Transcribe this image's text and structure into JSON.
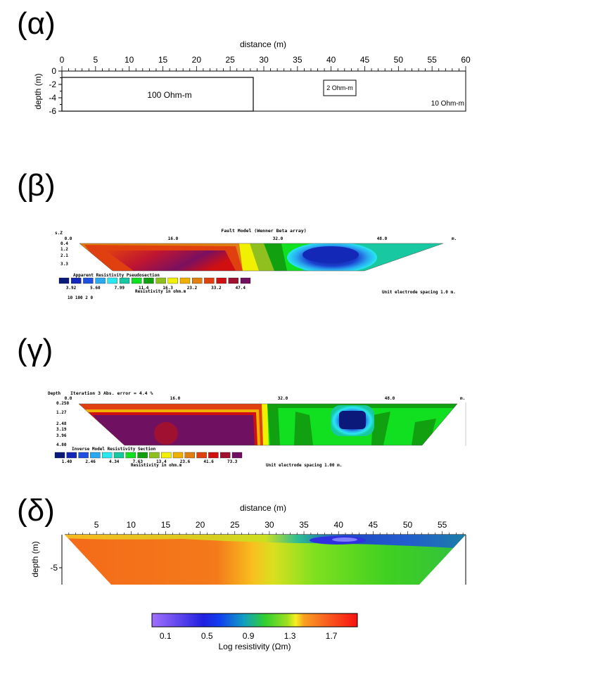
{
  "panels": {
    "a": {
      "letter": "(α)"
    },
    "b": {
      "letter": "(β)"
    },
    "c": {
      "letter": "(γ)"
    },
    "d": {
      "letter": "(δ)"
    }
  },
  "alpha": {
    "xlabel": "distance (m)",
    "ylabel": "depth (m)",
    "xticks": [
      "0",
      "5",
      "10",
      "15",
      "20",
      "25",
      "30",
      "35",
      "40",
      "45",
      "50",
      "55",
      "60"
    ],
    "yticks": [
      "0",
      "-2",
      "-4",
      "-6"
    ],
    "blocks": [
      "100 Ohm-m",
      "2 Ohm-m",
      "10 Ohm-m"
    ]
  },
  "beta": {
    "title": "Fault Model (Wenner Beta array)",
    "corner": "s.Z",
    "xticks": [
      "0.0",
      "16.0",
      "32.0",
      "48.0"
    ],
    "xunit": "m.",
    "depths": [
      "0.4",
      "1.2",
      "2.1",
      "3.3"
    ],
    "legend_title": "Apparent Resistivity Pseudosection",
    "legend_values": [
      "3.92",
      "5.60",
      "7.99",
      "11.4",
      "16.3",
      "23.2",
      "33.2",
      "47.4"
    ],
    "legend_unit": "Resistivity in ohm.m",
    "spacing_note": "Unit electrode spacing 1.0 m.",
    "footer": "10   100 2 0"
  },
  "gamma": {
    "corner": "Depth",
    "title": "Iteration 3 Abs. error = 4.4 %",
    "xticks": [
      "0.0",
      "16.0",
      "32.0",
      "48.0"
    ],
    "xunit": "m.",
    "depths": [
      "0.250",
      "1.27",
      "2.48",
      "3.19",
      "3.96",
      "4.80"
    ],
    "legend_title": "Inverse Model Resistivity Section",
    "legend_values": [
      "1.40",
      "2.46",
      "4.34",
      "7.63",
      "13.4",
      "23.6",
      "41.6",
      "73.3"
    ],
    "legend_unit": "Resistivity in ohm.m",
    "spacing_note": "Unit electrode spacing 1.00 m."
  },
  "delta": {
    "xlabel": "distance (m)",
    "ylabel": "depth (m)",
    "xticks": [
      "5",
      "10",
      "15",
      "20",
      "25",
      "30",
      "35",
      "40",
      "45",
      "50",
      "55"
    ],
    "yticks": [
      "-5"
    ],
    "colorbar_ticks": [
      "0.1",
      "0.5",
      "0.9",
      "1.3",
      "1.7"
    ],
    "colorbar_label": "Log resistivity (Ωm)"
  },
  "colors": {
    "pseudo_scale": [
      "#0b1a7a",
      "#1428b8",
      "#2050e0",
      "#2aa8f0",
      "#28e8f0",
      "#18c8a0",
      "#10e020",
      "#10a010",
      "#90c020",
      "#f0f000",
      "#f0b000",
      "#e08010",
      "#e04010",
      "#d01010",
      "#a01030",
      "#701060"
    ]
  }
}
